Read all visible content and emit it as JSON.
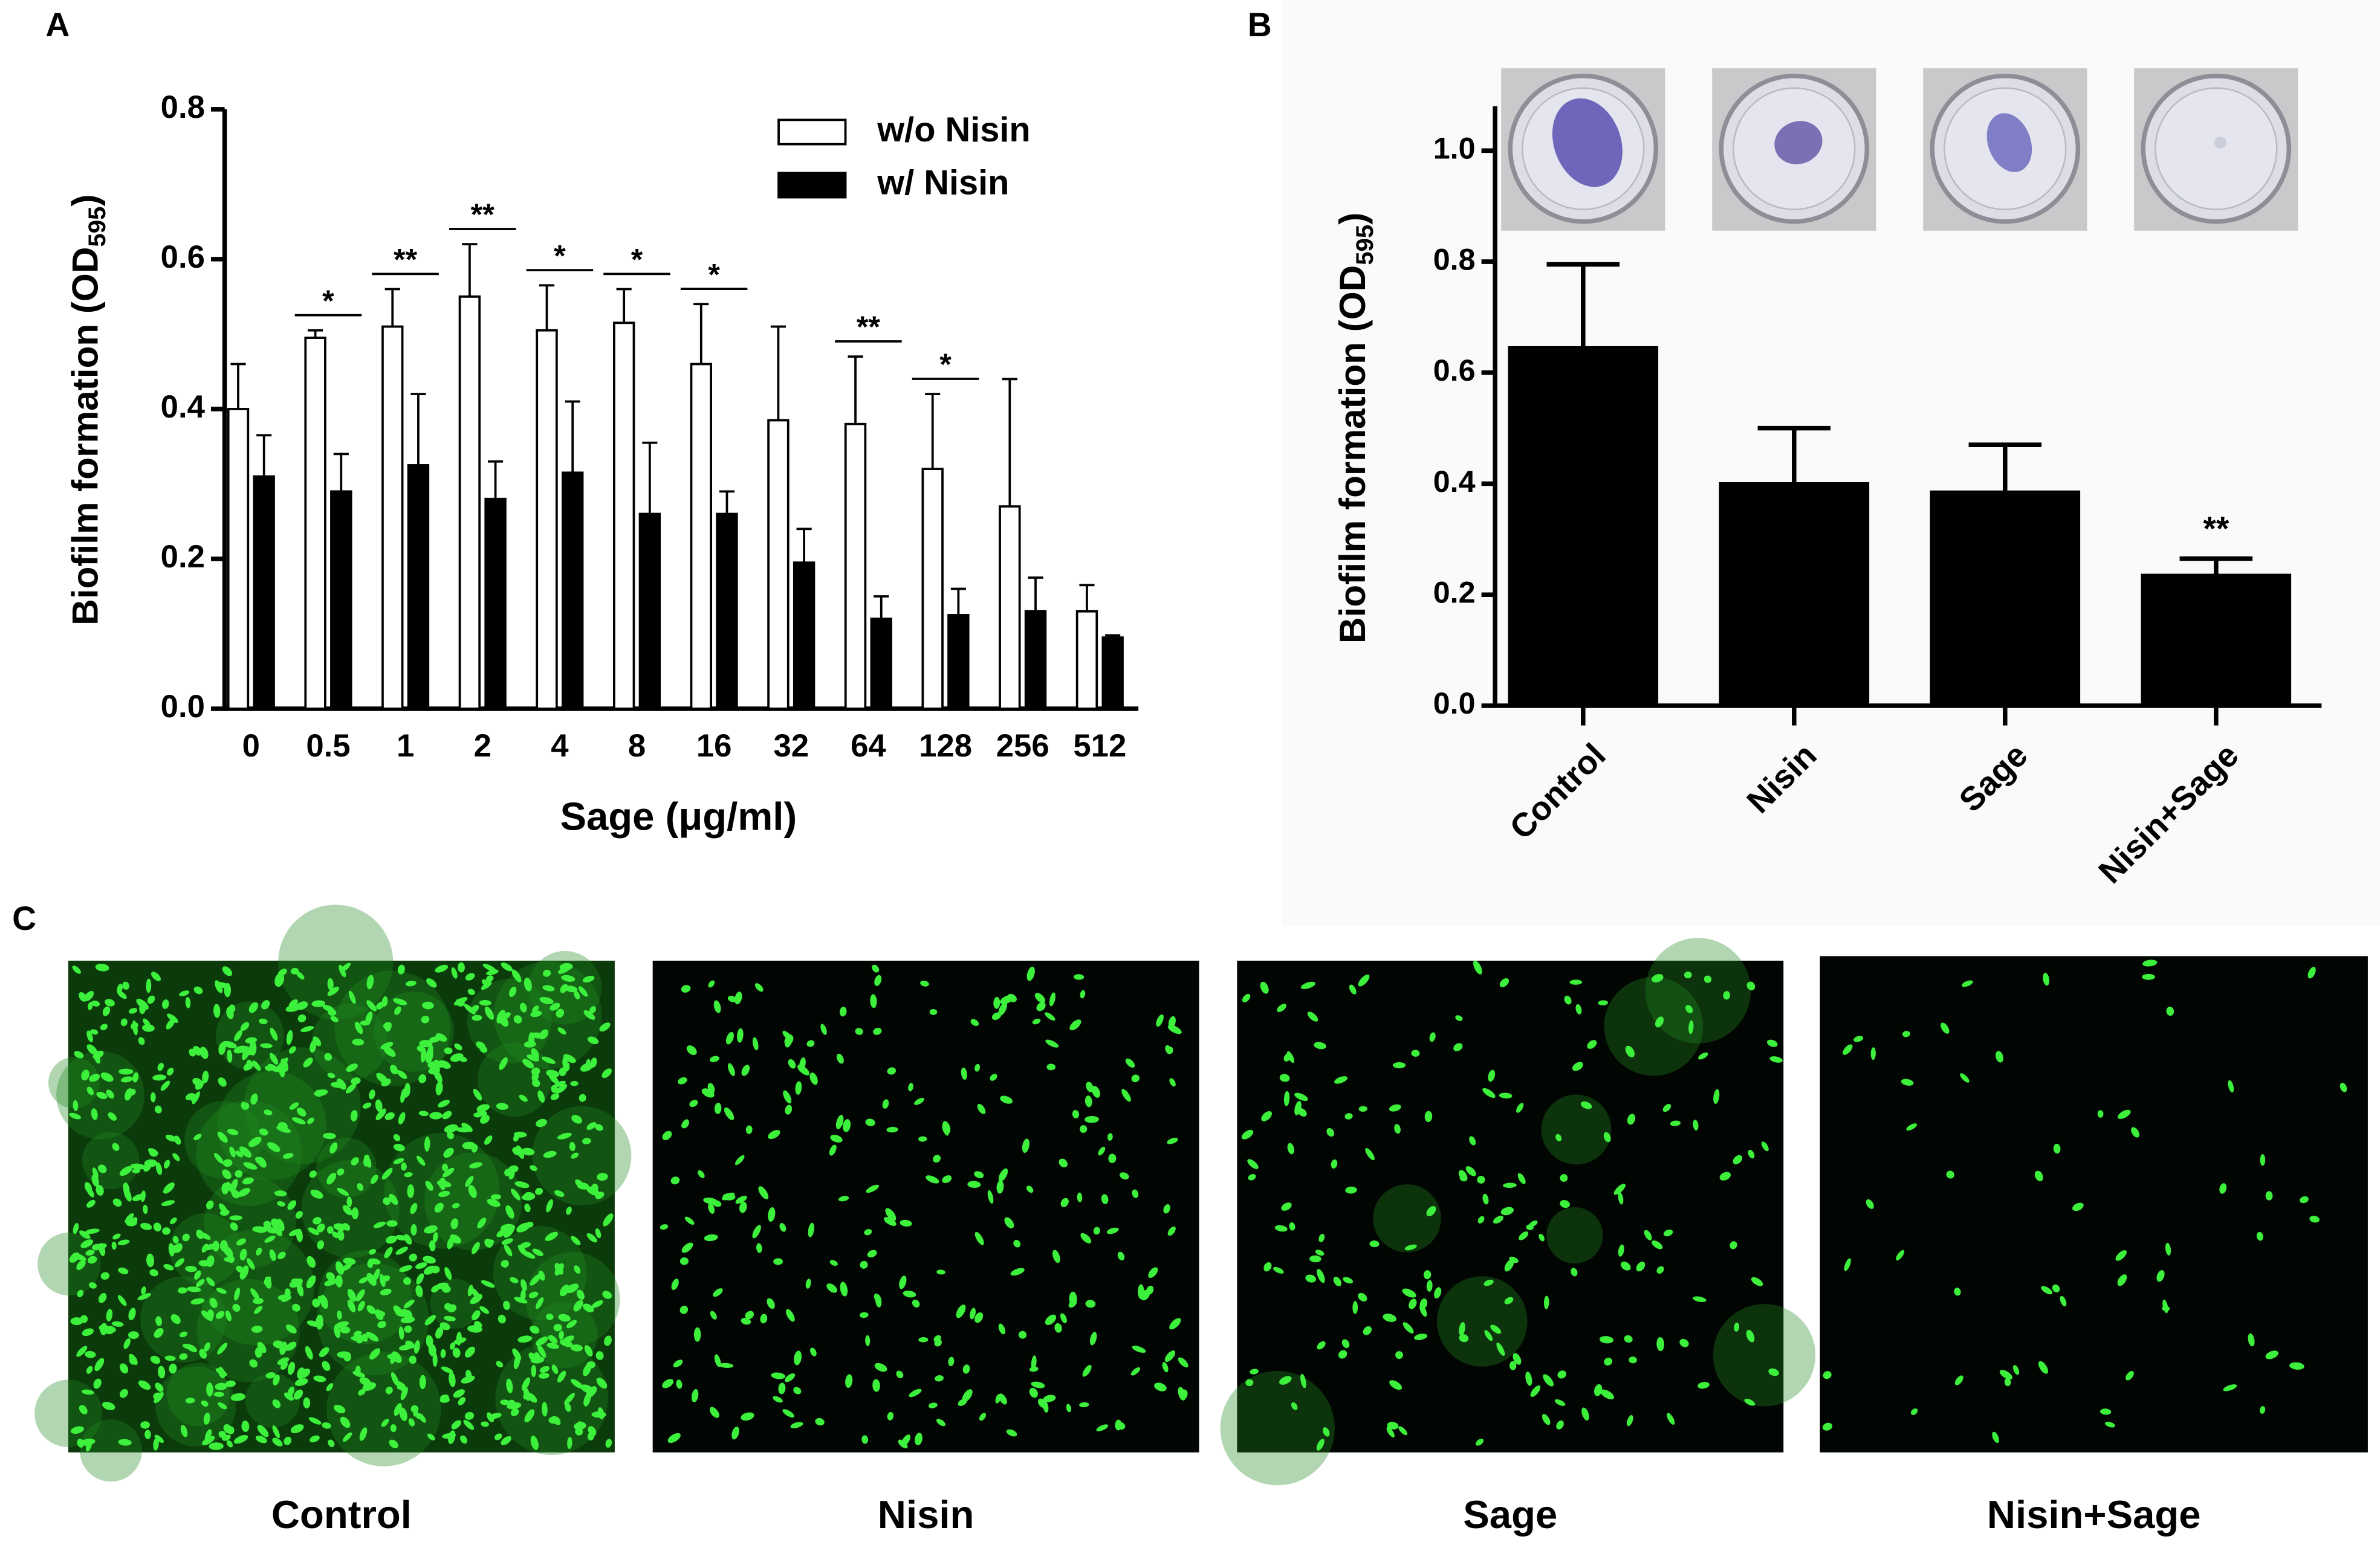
{
  "panel_labels": [
    "A",
    "B",
    "C"
  ],
  "chart_data": [
    {
      "type": "bar",
      "ylabel": "Biofilm formation (OD",
      "ylabel_subscript": "595",
      "ylabel_end": ")",
      "xlabel": "Sage (μg/ml)",
      "categories": [
        "0",
        "0.5",
        "1",
        "2",
        "4",
        "8",
        "16",
        "32",
        "64",
        "128",
        "256",
        "512"
      ],
      "series": [
        {
          "name": "w/o Nisin",
          "color": "#ffffff",
          "values": [
            0.4,
            0.495,
            0.51,
            0.55,
            0.505,
            0.515,
            0.46,
            0.385,
            0.38,
            0.32,
            0.27,
            0.13
          ],
          "errors": [
            0.06,
            0.01,
            0.05,
            0.07,
            0.06,
            0.045,
            0.08,
            0.125,
            0.09,
            0.1,
            0.17,
            0.035
          ]
        },
        {
          "name": "w/ Nisin",
          "color": "#000000",
          "values": [
            0.31,
            0.29,
            0.325,
            0.28,
            0.315,
            0.26,
            0.26,
            0.195,
            0.12,
            0.125,
            0.13,
            0.095
          ],
          "errors": [
            0.055,
            0.05,
            0.095,
            0.05,
            0.095,
            0.095,
            0.03,
            0.045,
            0.03,
            0.035,
            0.045,
            0.003
          ]
        }
      ],
      "significance_labels": [
        null,
        "*",
        "**",
        "**",
        "*",
        "*",
        "*",
        null,
        "**",
        "*",
        null,
        null
      ],
      "ylim": [
        0,
        0.8
      ],
      "yticks": [
        {
          "value": 0,
          "label": "0.0"
        },
        0.2,
        0.4,
        0.6,
        0.8
      ],
      "legend": "upper right"
    },
    {
      "type": "bar",
      "ylabel": "Biofilm formation (OD",
      "ylabel_subscript": "595",
      "ylabel_end": ")",
      "categories": [
        "Control",
        "Nisin",
        "Sage",
        "Nisin+Sage"
      ],
      "color": "#000000",
      "values": [
        0.645,
        0.4,
        0.385,
        0.235
      ],
      "errors": [
        0.15,
        0.1,
        0.085,
        0.03
      ],
      "significance_labels": [
        null,
        null,
        null,
        "**"
      ],
      "ylim": [
        0,
        1.08
      ],
      "yticks": [
        {
          "value": 0,
          "label": "0.0"
        },
        0.2,
        0.4,
        0.6,
        0.8,
        {
          "value": 1,
          "label": "1.0"
        }
      ]
    }
  ],
  "micrographs": {
    "labels": [
      "Control",
      "Nisin",
      "Sage",
      "Nisin+Sage"
    ]
  }
}
